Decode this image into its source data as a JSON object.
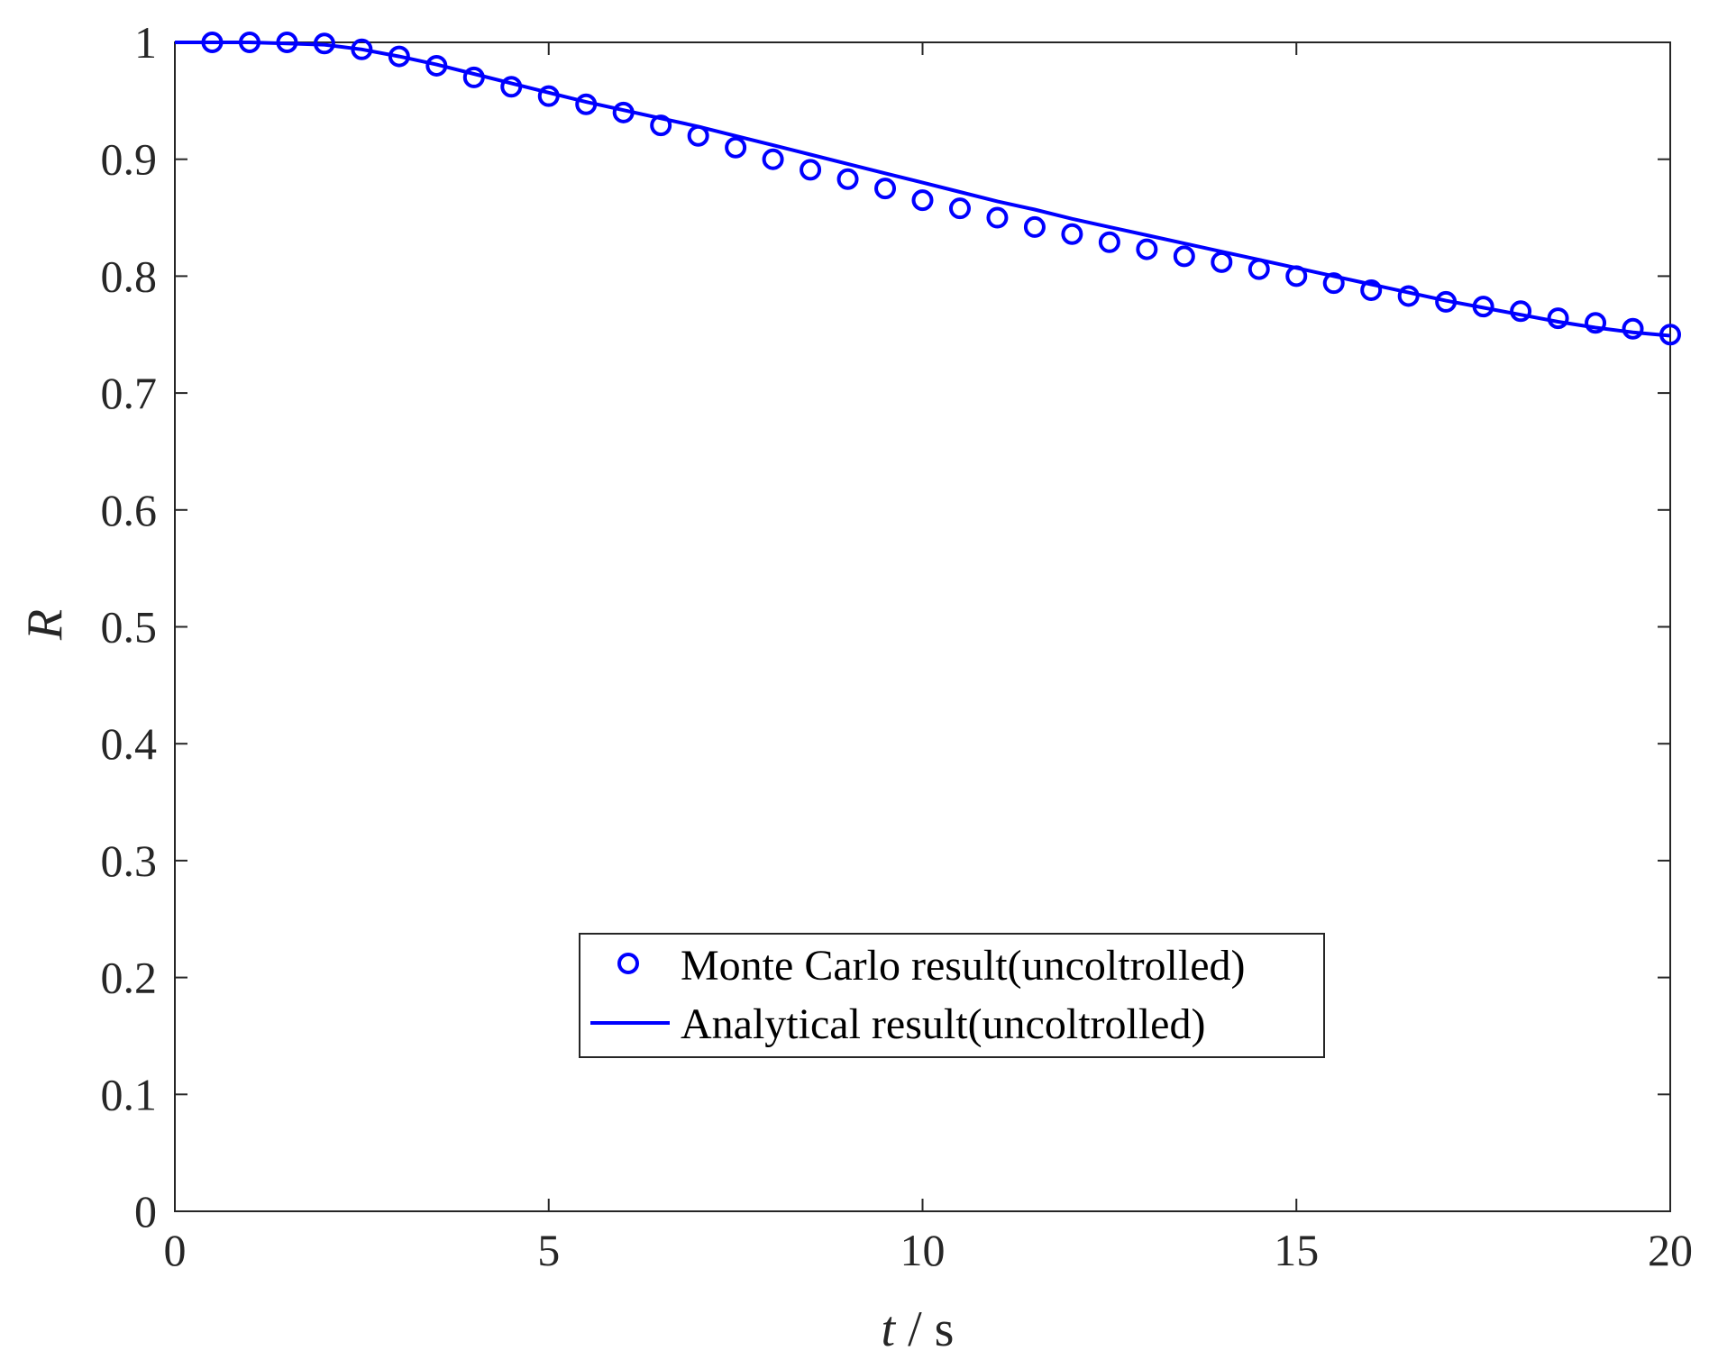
{
  "chart_data": {
    "type": "line",
    "title": "",
    "xlabel_var": "t",
    "xlabel_unit": " / s",
    "ylabel": "R",
    "xlim": [
      0,
      20
    ],
    "ylim": [
      0,
      1
    ],
    "xticks": [
      0,
      5,
      10,
      15,
      20
    ],
    "xtick_labels": [
      "0",
      "5",
      "10",
      "15",
      "20"
    ],
    "yticks": [
      0,
      0.1,
      0.2,
      0.3,
      0.4,
      0.5,
      0.6,
      0.7,
      0.8,
      0.9,
      1
    ],
    "ytick_labels": [
      "0",
      "0.1",
      "0.2",
      "0.3",
      "0.4",
      "0.5",
      "0.6",
      "0.7",
      "0.8",
      "0.9",
      "1"
    ],
    "grid": false,
    "box": true,
    "legend_position": "lower-center",
    "series": [
      {
        "name": "Monte Carlo result(uncoltrolled)",
        "style": "markers",
        "marker": "circle",
        "color": "#0000ff",
        "x": [
          0.5,
          1,
          1.5,
          2,
          2.5,
          3,
          3.5,
          4,
          4.5,
          5,
          5.5,
          6,
          6.5,
          7,
          7.5,
          8,
          8.5,
          9,
          9.5,
          10,
          10.5,
          11,
          11.5,
          12,
          12.5,
          13,
          13.5,
          14,
          14.5,
          15,
          15.5,
          16,
          16.5,
          17,
          17.5,
          18,
          18.5,
          19,
          19.5,
          20
        ],
        "y": [
          1.0,
          1.0,
          1.0,
          0.999,
          0.994,
          0.988,
          0.98,
          0.97,
          0.962,
          0.954,
          0.947,
          0.94,
          0.929,
          0.92,
          0.91,
          0.9,
          0.891,
          0.883,
          0.875,
          0.865,
          0.858,
          0.85,
          0.842,
          0.836,
          0.829,
          0.823,
          0.817,
          0.812,
          0.806,
          0.8,
          0.794,
          0.788,
          0.783,
          0.778,
          0.774,
          0.77,
          0.764,
          0.76,
          0.755,
          0.75
        ]
      },
      {
        "name": "Analytical result(uncoltrolled)",
        "style": "line",
        "color": "#0000ff",
        "x": [
          0,
          0.5,
          1,
          1.5,
          2,
          2.5,
          3,
          3.5,
          4,
          4.5,
          5,
          5.5,
          6,
          6.5,
          7,
          7.5,
          8,
          8.5,
          9,
          9.5,
          10,
          10.5,
          11,
          11.5,
          12,
          12.5,
          13,
          13.5,
          14,
          14.5,
          15,
          15.5,
          16,
          16.5,
          17,
          17.5,
          18,
          18.5,
          19,
          19.5,
          20
        ],
        "y": [
          1.0,
          1.0,
          1.0,
          0.999,
          0.998,
          0.994,
          0.988,
          0.981,
          0.973,
          0.965,
          0.957,
          0.949,
          0.942,
          0.935,
          0.928,
          0.92,
          0.912,
          0.904,
          0.896,
          0.888,
          0.88,
          0.872,
          0.864,
          0.857,
          0.849,
          0.842,
          0.835,
          0.828,
          0.821,
          0.814,
          0.807,
          0.8,
          0.793,
          0.786,
          0.779,
          0.773,
          0.767,
          0.761,
          0.756,
          0.752,
          0.749
        ]
      }
    ]
  }
}
